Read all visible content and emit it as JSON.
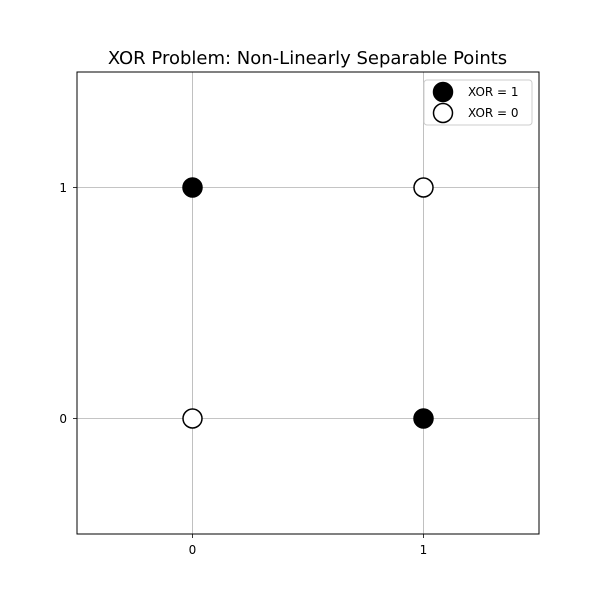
{
  "chart_data": {
    "type": "scatter",
    "title": "XOR Problem: Non-Linearly Separable Points",
    "xlabel": "",
    "ylabel": "",
    "xlim": [
      -0.5,
      1.5
    ],
    "ylim": [
      -0.5,
      1.5
    ],
    "xticks": [
      0,
      1
    ],
    "yticks": [
      0,
      1
    ],
    "grid": true,
    "legend_position": "upper-right",
    "series": [
      {
        "name": "XOR = 1",
        "marker": "filled-circle",
        "fill_color": "#000000",
        "edge_color": "#000000",
        "points": [
          {
            "x": 0,
            "y": 1
          },
          {
            "x": 1,
            "y": 0
          }
        ]
      },
      {
        "name": "XOR = 0",
        "marker": "hollow-circle",
        "fill_color": "#ffffff",
        "edge_color": "#000000",
        "points": [
          {
            "x": 0,
            "y": 0
          },
          {
            "x": 1,
            "y": 1
          }
        ]
      }
    ],
    "colors": {
      "grid": "#b0b0b0",
      "axes": "#000000",
      "background": "#ffffff"
    }
  }
}
